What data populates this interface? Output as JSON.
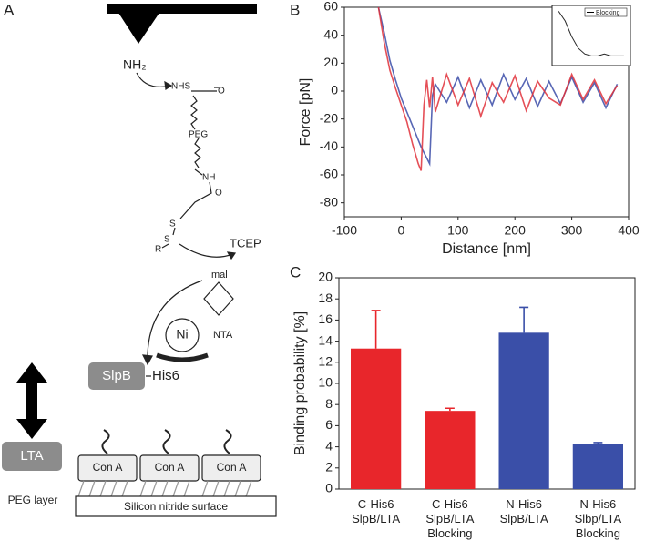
{
  "panels": {
    "a": "A",
    "b": "B",
    "c": "C"
  },
  "diagram": {
    "nh2": "NH₂",
    "nhs": "NHS",
    "o1": "O",
    "peg": "PEG",
    "nh": "NH",
    "o2": "O",
    "s1": "S",
    "s2": "S",
    "r": "R",
    "tcep": "TCEP",
    "mal": "mal",
    "nta": "NTA",
    "ni": "Ni",
    "slpb": "SlpB",
    "his6": "His6",
    "lta": "LTA",
    "cona": [
      "Con A",
      "Con A",
      "Con A"
    ],
    "peg_layer": "PEG layer",
    "surface": "Silicon nitride surface"
  },
  "chart_data": [
    {
      "type": "line",
      "xlabel": "Distance [nm]",
      "ylabel": "Force [pN]",
      "x": [
        -40,
        -30,
        -20,
        -10,
        0,
        10,
        20,
        30,
        35,
        40,
        45,
        50,
        55,
        60,
        80,
        100,
        120,
        140,
        160,
        180,
        200,
        220,
        240,
        260,
        280,
        300,
        320,
        340,
        360,
        380
      ],
      "series": [
        {
          "color": "#3b4ca8",
          "values": [
            60,
            42,
            22,
            8,
            -5,
            -15,
            -25,
            -35,
            -40,
            -44,
            -48,
            -52,
            -3,
            5,
            -8,
            10,
            -12,
            8,
            -10,
            12,
            -6,
            9,
            -11,
            7,
            -9,
            10,
            -8,
            6,
            -12,
            5
          ]
        },
        {
          "color": "#e0303a",
          "values": [
            60,
            35,
            15,
            2,
            -10,
            -22,
            -38,
            -52,
            -57,
            -10,
            8,
            -12,
            10,
            -15,
            12,
            -10,
            9,
            -18,
            6,
            -8,
            11,
            -14,
            7,
            -5,
            -10,
            12,
            -6,
            8,
            -9,
            4
          ]
        }
      ],
      "xlim": [
        -100,
        400
      ],
      "xticks": [
        -100,
        0,
        100,
        200,
        300,
        400
      ],
      "ylim": [
        -90,
        60
      ],
      "yticks": [
        -80,
        -60,
        -40,
        -20,
        0,
        20,
        40,
        60
      ]
    },
    {
      "type": "bar",
      "ylabel": "Binding probability [%]",
      "categories": [
        "C-His6\nSlpB/LTA",
        "C-His6\nSlpB/LTA\nBlocking",
        "N-His6\nSlpB/LTA",
        "N-His6\nSlbp/LTA\nBlocking"
      ],
      "values": [
        13.3,
        7.4,
        14.8,
        4.3
      ],
      "errors": [
        3.6,
        0.25,
        2.4,
        0.1
      ],
      "colors": [
        "#e8262b",
        "#e8262b",
        "#3a4fa8",
        "#3a4fa8"
      ],
      "ylim": [
        0,
        20
      ],
      "yticks": [
        0,
        2,
        4,
        6,
        8,
        10,
        12,
        14,
        16,
        18,
        20
      ]
    },
    {
      "type": "line",
      "x": [
        0,
        1,
        2,
        3,
        4,
        5,
        6,
        7,
        8,
        9,
        10
      ],
      "series": [
        {
          "name": "Blocking",
          "color": "#000000",
          "values": [
            25,
            20,
            12,
            6,
            3,
            2,
            2,
            3,
            2,
            2,
            2
          ]
        }
      ],
      "xlim": [
        -1,
        11
      ],
      "ylim": [
        -3,
        28
      ]
    }
  ]
}
